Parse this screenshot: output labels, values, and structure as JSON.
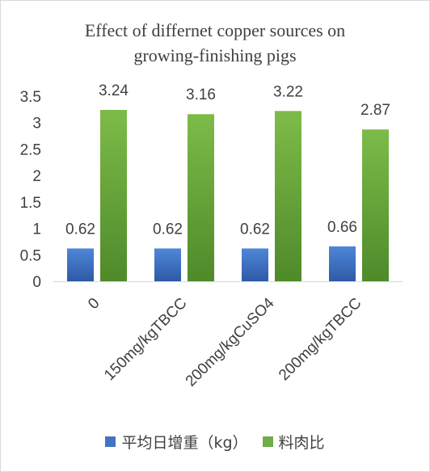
{
  "chart_data": {
    "type": "bar",
    "title_lines": [
      "Effect of differnet copper sources on",
      "growing-finishing pigs"
    ],
    "categories": [
      "0",
      "150mg/kgTBCC",
      "200mg/kgCuSO4",
      "200mg/kgTBCC"
    ],
    "series": [
      {
        "name": "平均日增重（kg）",
        "values": [
          0.62,
          0.62,
          0.62,
          0.66
        ],
        "color": "#4472c4"
      },
      {
        "name": "料肉比",
        "values": [
          3.24,
          3.16,
          3.22,
          2.87
        ],
        "color": "#70ad47"
      }
    ],
    "ylim": [
      0,
      3.5
    ],
    "yticks": [
      "0",
      "0.5",
      "1",
      "1.5",
      "2",
      "2.5",
      "3",
      "3.5"
    ],
    "grid": false,
    "legend_position": "bottom",
    "data_labels": true
  }
}
